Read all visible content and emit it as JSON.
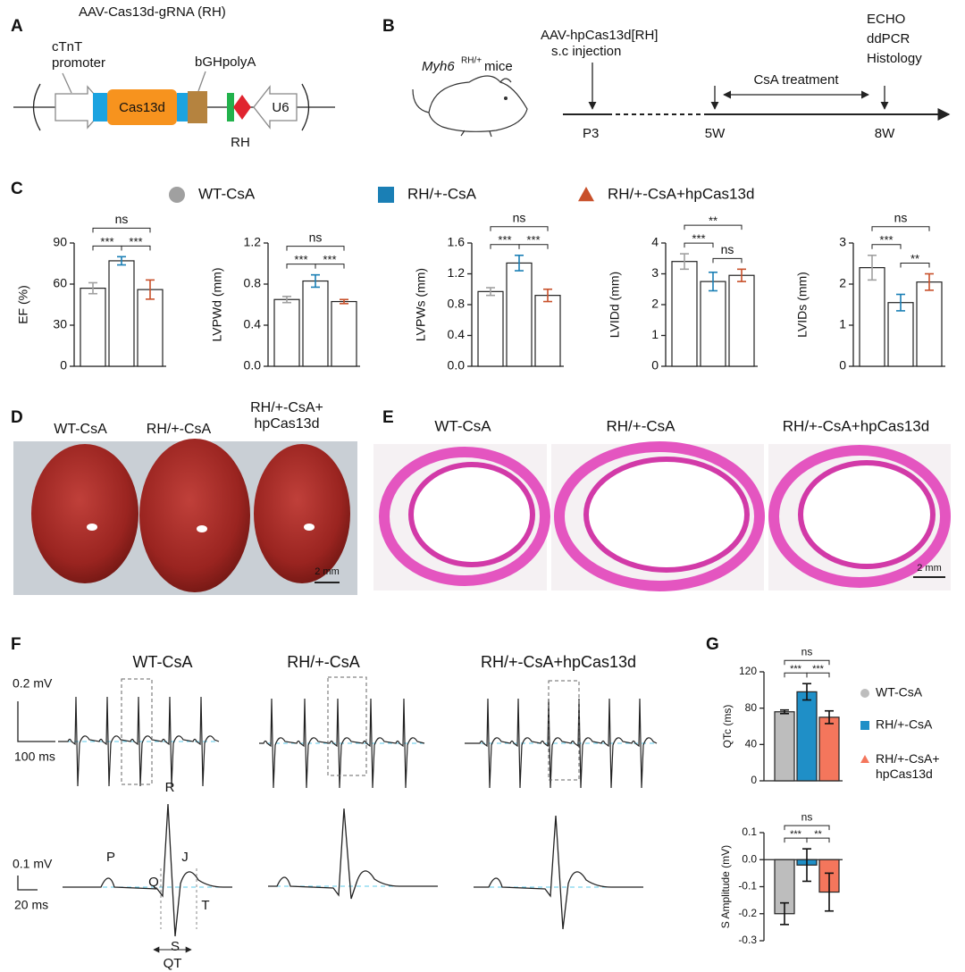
{
  "panel_a": {
    "label": "A",
    "title": "AAV-Cas13d-gRNA (RH)",
    "promoter": "cTnT promoter",
    "polya": "bGHpolyA",
    "gene": "Cas13d",
    "u6": "U6",
    "target": "RH"
  },
  "panel_b": {
    "label": "B",
    "strain": "Myh6",
    "strain_sup": "RH/+",
    "strain_suffix": "mice",
    "injection": "AAV-hpCas13d[RH]",
    "injection_route": "s.c injection",
    "treatment": "CsA treatment",
    "readouts": [
      "ECHO",
      "ddPCR",
      "Histology"
    ],
    "timepoints": [
      "P3",
      "5W",
      "8W"
    ]
  },
  "panel_c": {
    "label": "C",
    "legend": [
      {
        "name": "WT-CsA",
        "color": "#a0a0a0",
        "marker": "circle"
      },
      {
        "name": "RH/+-CsA",
        "color": "#1a7fb5",
        "marker": "square"
      },
      {
        "name": "RH/+-CsA+hpCas13d",
        "color": "#c8502a",
        "marker": "triangle"
      }
    ],
    "charts": [
      {
        "type": "bar",
        "ylabel": "EF (%)",
        "ylim": [
          0,
          90
        ],
        "yticks": [
          0,
          30,
          60,
          90
        ],
        "values": [
          57,
          77,
          56
        ],
        "errors": [
          4,
          3,
          7
        ],
        "bar_fill": "#ffffff",
        "comparisons": [
          {
            "between": [
              "WT-CsA",
              "RH/+-CsA+hpCas13d"
            ],
            "label": "ns"
          },
          {
            "between": [
              "WT-CsA",
              "RH/+-CsA"
            ],
            "label": "***"
          },
          {
            "between": [
              "RH/+-CsA",
              "RH/+-CsA+hpCas13d"
            ],
            "label": "***"
          }
        ]
      },
      {
        "type": "bar",
        "ylabel": "LVPWd (mm)",
        "ylim": [
          0,
          1.2
        ],
        "yticks": [
          {
            "value": 0,
            "label": "0.0"
          },
          0.4,
          0.8,
          1.2
        ],
        "values": [
          0.65,
          0.83,
          0.63
        ],
        "errors": [
          0.03,
          0.06,
          0.02
        ],
        "bar_fill": "#ffffff",
        "comparisons": [
          {
            "between": [
              "WT-CsA",
              "RH/+-CsA+hpCas13d"
            ],
            "label": "ns"
          },
          {
            "between": [
              "WT-CsA",
              "RH/+-CsA"
            ],
            "label": "***"
          },
          {
            "between": [
              "RH/+-CsA",
              "RH/+-CsA+hpCas13d"
            ],
            "label": "***"
          }
        ]
      },
      {
        "type": "bar",
        "ylabel": "LVPWs (mm)",
        "ylim": [
          0,
          1.6
        ],
        "yticks": [
          {
            "value": 0,
            "label": "0.0"
          },
          0.4,
          0.8,
          1.2,
          1.6
        ],
        "values": [
          0.97,
          1.34,
          0.92
        ],
        "errors": [
          0.05,
          0.1,
          0.08
        ],
        "bar_fill": "#ffffff",
        "comparisons": [
          {
            "between": [
              "WT-CsA",
              "RH/+-CsA+hpCas13d"
            ],
            "label": "ns"
          },
          {
            "between": [
              "WT-CsA",
              "RH/+-CsA"
            ],
            "label": "***"
          },
          {
            "between": [
              "RH/+-CsA",
              "RH/+-CsA+hpCas13d"
            ],
            "label": "***"
          }
        ]
      },
      {
        "type": "bar",
        "ylabel": "LVIDd (mm)",
        "ylim": [
          0,
          4
        ],
        "yticks": [
          0,
          1,
          2,
          3,
          4
        ],
        "values": [
          3.4,
          2.75,
          2.95
        ],
        "errors": [
          0.25,
          0.3,
          0.2
        ],
        "bar_fill": "#ffffff",
        "comparisons": [
          {
            "between": [
              "WT-CsA",
              "RH/+-CsA+hpCas13d"
            ],
            "label": "**"
          },
          {
            "between": [
              "WT-CsA",
              "RH/+-CsA"
            ],
            "label": "***"
          },
          {
            "between": [
              "RH/+-CsA",
              "RH/+-CsA+hpCas13d"
            ],
            "label": "ns"
          }
        ]
      },
      {
        "type": "bar",
        "ylabel": "LVIDs (mm)",
        "ylim": [
          0,
          3
        ],
        "yticks": [
          0,
          1,
          2,
          3
        ],
        "values": [
          2.4,
          1.55,
          2.05
        ],
        "errors": [
          0.3,
          0.2,
          0.2
        ],
        "bar_fill": "#ffffff",
        "comparisons": [
          {
            "between": [
              "WT-CsA",
              "RH/+-CsA+hpCas13d"
            ],
            "label": "ns"
          },
          {
            "between": [
              "WT-CsA",
              "RH/+-CsA"
            ],
            "label": "***"
          },
          {
            "between": [
              "RH/+-CsA",
              "RH/+-CsA+hpCas13d"
            ],
            "label": "**"
          }
        ]
      }
    ]
  },
  "panel_d": {
    "label": "D",
    "columns": [
      "WT-CsA",
      "RH/+-CsA",
      "RH/+-CsA+ hpCas13d"
    ],
    "scale_bar": "2 mm"
  },
  "panel_e": {
    "label": "E",
    "columns": [
      "WT-CsA",
      "RH/+-CsA",
      "RH/+-CsA+hpCas13d"
    ],
    "scale_bar": "2 mm"
  },
  "panel_f": {
    "label": "F",
    "columns": [
      "WT-CsA",
      "RH/+-CsA",
      "RH/+-CsA+hpCas13d"
    ],
    "scale_top": [
      "0.2 mV",
      "100 ms"
    ],
    "scale_bottom": [
      "0.1 mV",
      "20 ms"
    ],
    "waves": [
      "P",
      "Q",
      "R",
      "S",
      "J",
      "T"
    ],
    "interval": "QT"
  },
  "panel_g": {
    "label": "G",
    "legend": [
      {
        "name": "WT-CsA",
        "color": "#bdbdbd",
        "marker": "circle"
      },
      {
        "name": "RH/+-CsA",
        "color": "#1f8fc7",
        "marker": "square"
      },
      {
        "name": "RH/+-CsA+ hpCas13d",
        "color": "#f4765c",
        "marker": "triangle"
      }
    ],
    "charts": [
      {
        "type": "bar",
        "ylabel": "QTc (ms)",
        "ylim": [
          0,
          120
        ],
        "yticks": [
          0,
          40,
          80,
          120
        ],
        "values": [
          76,
          98,
          70
        ],
        "errors": [
          2,
          9,
          7
        ],
        "comparisons": [
          {
            "between": [
              "WT-CsA",
              "RH/+-CsA+ hpCas13d"
            ],
            "label": "ns"
          },
          {
            "between": [
              "WT-CsA",
              "RH/+-CsA"
            ],
            "label": "***"
          },
          {
            "between": [
              "RH/+-CsA",
              "RH/+-CsA+ hpCas13d"
            ],
            "label": "***"
          }
        ]
      },
      {
        "type": "bar",
        "ylabel": "S Amplitude (mV)",
        "ylim": [
          -0.3,
          0.1
        ],
        "yticks": [
          0.1,
          {
            "value": 0,
            "label": "0.0"
          },
          -0.1,
          -0.2,
          -0.3
        ],
        "values": [
          -0.2,
          -0.02,
          -0.12
        ],
        "errors": [
          0.04,
          0.06,
          0.07
        ],
        "comparisons": [
          {
            "between": [
              "WT-CsA",
              "RH/+-CsA+ hpCas13d"
            ],
            "label": "ns"
          },
          {
            "between": [
              "WT-CsA",
              "RH/+-CsA"
            ],
            "label": "***"
          },
          {
            "between": [
              "RH/+-CsA",
              "RH/+-CsA+ hpCas13d"
            ],
            "label": "**"
          }
        ]
      }
    ]
  }
}
